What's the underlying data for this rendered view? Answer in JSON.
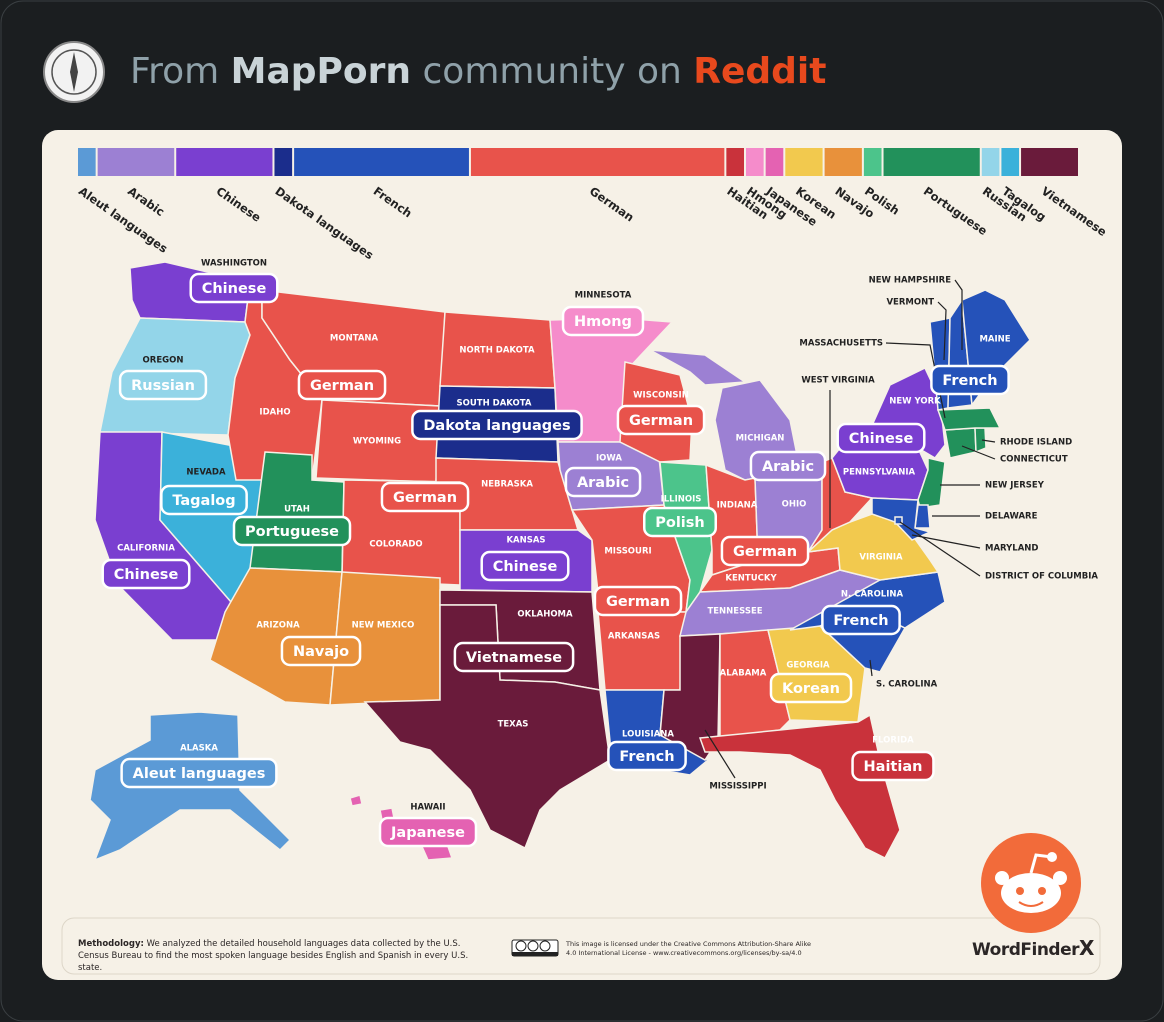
{
  "header": {
    "prefix": "From",
    "community": "MapPorn",
    "middle": "community on",
    "platform": "Reddit"
  },
  "map": {
    "legend": [
      {
        "name": "Aleut languages",
        "color": "#5b9ad6"
      },
      {
        "name": "Arabic",
        "color": "#9c80d3"
      },
      {
        "name": "Chinese",
        "color": "#7a3fd0"
      },
      {
        "name": "Dakota languages",
        "color": "#1b2d8c"
      },
      {
        "name": "French",
        "color": "#2552b9"
      },
      {
        "name": "German",
        "color": "#e8534b"
      },
      {
        "name": "Haitian",
        "color": "#c9323b"
      },
      {
        "name": "Hmong",
        "color": "#f58ccb"
      },
      {
        "name": "Japanese",
        "color": "#e462b2"
      },
      {
        "name": "Korean",
        "color": "#f2c94e"
      },
      {
        "name": "Navajo",
        "color": "#e8913b"
      },
      {
        "name": "Polish",
        "color": "#4cc48b"
      },
      {
        "name": "Portuguese",
        "color": "#22915b"
      },
      {
        "name": "Russian",
        "color": "#93d5e9"
      },
      {
        "name": "Tagalog",
        "color": "#3bb1da"
      },
      {
        "name": "Vietnamese",
        "color": "#6a1b3b"
      }
    ],
    "states": [
      {
        "name": "WASHINGTON",
        "color": "#7a3fd0",
        "label": "Chinese"
      },
      {
        "name": "OREGON",
        "color": "#93d5e9",
        "label": "Russian"
      },
      {
        "name": "CALIFORNIA",
        "color": "#7a3fd0",
        "label": "Chinese"
      },
      {
        "name": "NEVADA",
        "color": "#3bb1da",
        "label": "Tagalog"
      },
      {
        "name": "IDAHO",
        "color": "#e8534b"
      },
      {
        "name": "MONTANA",
        "color": "#e8534b",
        "label": "German"
      },
      {
        "name": "WYOMING",
        "color": "#e8534b"
      },
      {
        "name": "UTAH",
        "color": "#22915b",
        "label": "Portuguese"
      },
      {
        "name": "COLORADO",
        "color": "#e8534b",
        "label": "German"
      },
      {
        "name": "ARIZONA",
        "color": "#e8913b",
        "label": "Navajo"
      },
      {
        "name": "NEW MEXICO",
        "color": "#e8913b"
      },
      {
        "name": "NORTH DAKOTA",
        "color": "#e8534b"
      },
      {
        "name": "SOUTH DAKOTA",
        "color": "#1b2d8c",
        "label": "Dakota languages"
      },
      {
        "name": "NEBRASKA",
        "color": "#e8534b"
      },
      {
        "name": "KANSAS",
        "color": "#7a3fd0",
        "label": "Chinese"
      },
      {
        "name": "OKLAHOMA",
        "color": "#6a1b3b",
        "label": "Vietnamese"
      },
      {
        "name": "TEXAS",
        "color": "#6a1b3b"
      },
      {
        "name": "MINNESOTA",
        "color": "#f58ccb",
        "label": "Hmong"
      },
      {
        "name": "IOWA",
        "color": "#9c80d3",
        "label": "Arabic"
      },
      {
        "name": "MISSOURI",
        "color": "#e8534b",
        "label": "German"
      },
      {
        "name": "ARKANSAS",
        "color": "#e8534b"
      },
      {
        "name": "LOUISIANA",
        "color": "#2552b9",
        "label": "French"
      },
      {
        "name": "WISCONSIN",
        "color": "#e8534b",
        "label": "German"
      },
      {
        "name": "ILLINOIS",
        "color": "#4cc48b",
        "label": "Polish"
      },
      {
        "name": "MICHIGAN",
        "color": "#9c80d3",
        "label": "Arabic"
      },
      {
        "name": "INDIANA",
        "color": "#e8534b",
        "label": "German"
      },
      {
        "name": "OHIO",
        "color": "#9c80d3"
      },
      {
        "name": "KENTUCKY",
        "color": "#e8534b"
      },
      {
        "name": "TENNESSEE",
        "color": "#9c80d3"
      },
      {
        "name": "MISSISSIPPI",
        "color": "#6a1b3b"
      },
      {
        "name": "ALABAMA",
        "color": "#e8534b"
      },
      {
        "name": "GEORGIA",
        "color": "#f2c94e",
        "label": "Korean"
      },
      {
        "name": "FLORIDA",
        "color": "#c9323b",
        "label": "Haitian"
      },
      {
        "name": "S. CAROLINA",
        "color": "#2552b9"
      },
      {
        "name": "N. CAROLINA",
        "color": "#2552b9",
        "label": "French"
      },
      {
        "name": "VIRGINIA",
        "color": "#f2c94e"
      },
      {
        "name": "WEST VIRGINIA",
        "color": "#e8534b"
      },
      {
        "name": "PENNSYLVANIA",
        "color": "#7a3fd0"
      },
      {
        "name": "NEW YORK",
        "color": "#7a3fd0",
        "label": "Chinese"
      },
      {
        "name": "NEW JERSEY",
        "color": "#22915b"
      },
      {
        "name": "DELAWARE",
        "color": "#2552b9"
      },
      {
        "name": "MARYLAND",
        "color": "#2552b9"
      },
      {
        "name": "DISTRICT OF COLUMBIA",
        "color": "#2552b9"
      },
      {
        "name": "CONNECTICUT",
        "color": "#22915b"
      },
      {
        "name": "RHODE ISLAND",
        "color": "#22915b"
      },
      {
        "name": "MASSACHUSETTS",
        "color": "#22915b"
      },
      {
        "name": "VERMONT",
        "color": "#2552b9"
      },
      {
        "name": "NEW HAMPSHIRE",
        "color": "#2552b9"
      },
      {
        "name": "MAINE",
        "color": "#2552b9",
        "label": "French"
      },
      {
        "name": "ALASKA",
        "color": "#5b9ad6",
        "label": "Aleut languages"
      },
      {
        "name": "HAWAII",
        "color": "#e462b2",
        "label": "Japanese"
      }
    ]
  },
  "footer": {
    "methodology_label": "Methodology:",
    "methodology_text": "We analyzed the detailed household languages data collected by the U.S. Census Bureau to find the most spoken language besides English and Spanish in every U.S. state.",
    "license": "This image is licensed under the Creative Commons Attribution-Share Alike 4.0 International License - www.creativecommons.org/licenses/by-sa/4.0",
    "brand": "WordFinder",
    "brand_mark": "X"
  }
}
